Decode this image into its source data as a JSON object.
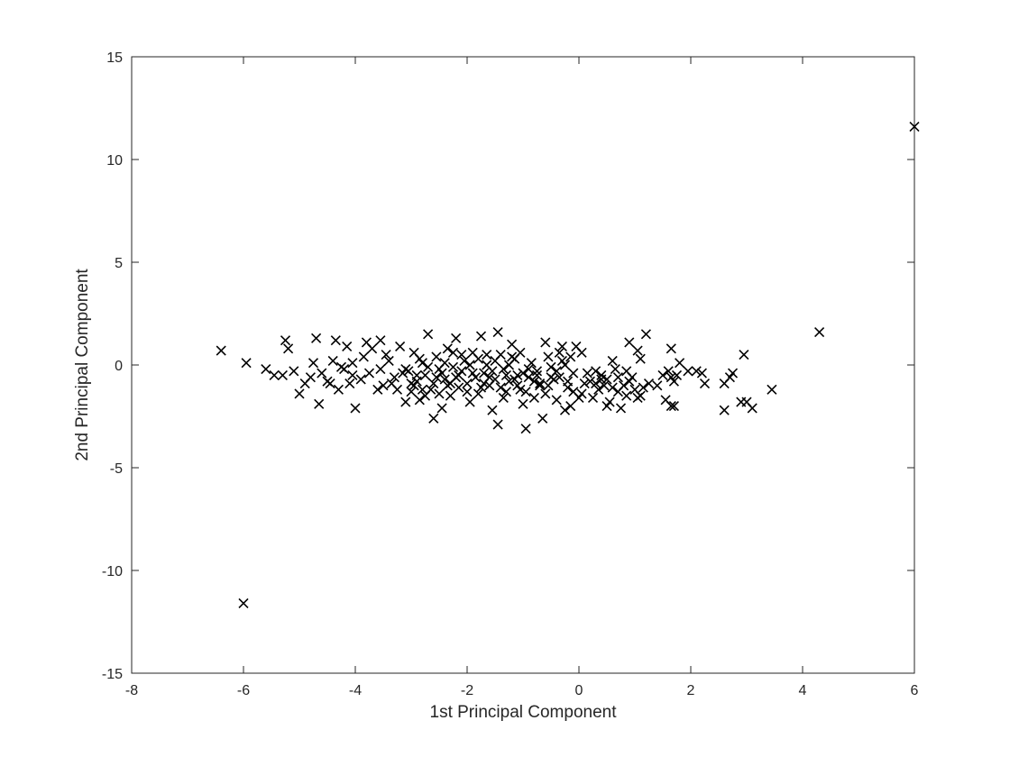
{
  "chart_data": {
    "type": "scatter",
    "title": "",
    "xlabel": "1st Principal Component",
    "ylabel": "2nd Principal Component",
    "xlim": [
      -8,
      6
    ],
    "ylim": [
      -15,
      15
    ],
    "xticks": [
      "-8",
      "-6",
      "-4",
      "-2",
      "0",
      "2",
      "4",
      "6"
    ],
    "yticks": [
      "-15",
      "-10",
      "-5",
      "0",
      "5",
      "10",
      "15"
    ],
    "grid": false,
    "legend": "none",
    "marker": "x",
    "marker_color": "#000000",
    "points": [
      [
        -6.4,
        0.7
      ],
      [
        -5.95,
        0.1
      ],
      [
        -6.0,
        -11.6
      ],
      [
        6.0,
        11.6
      ],
      [
        4.3,
        1.6
      ],
      [
        3.45,
        -1.2
      ],
      [
        3.1,
        -2.1
      ],
      [
        3.0,
        -1.8
      ],
      [
        2.9,
        -1.8
      ],
      [
        2.95,
        0.5
      ],
      [
        2.6,
        -2.2
      ],
      [
        2.6,
        -0.9
      ],
      [
        2.7,
        -0.6
      ],
      [
        2.75,
        -0.4
      ],
      [
        2.2,
        -0.4
      ],
      [
        2.25,
        -0.9
      ],
      [
        2.1,
        -0.3
      ],
      [
        1.95,
        -0.3
      ],
      [
        1.8,
        0.1
      ],
      [
        1.75,
        -0.5
      ],
      [
        1.7,
        -2.0
      ],
      [
        1.65,
        -2.0
      ],
      [
        1.7,
        -0.8
      ],
      [
        1.65,
        -0.6
      ],
      [
        1.6,
        -0.3
      ],
      [
        1.65,
        0.8
      ],
      [
        1.55,
        -1.7
      ],
      [
        1.5,
        -0.5
      ],
      [
        1.2,
        1.5
      ],
      [
        1.1,
        -1.5
      ],
      [
        1.15,
        -1.1
      ],
      [
        1.05,
        -1.6
      ],
      [
        1.0,
        -1.2
      ],
      [
        0.95,
        -0.6
      ],
      [
        0.9,
        1.1
      ],
      [
        1.05,
        0.7
      ],
      [
        1.1,
        0.3
      ],
      [
        0.85,
        -0.3
      ],
      [
        0.8,
        -1.0
      ],
      [
        0.75,
        -2.1
      ],
      [
        0.7,
        -0.6
      ],
      [
        0.65,
        -0.2
      ],
      [
        0.6,
        0.2
      ],
      [
        0.55,
        -1.8
      ],
      [
        0.5,
        -2.0
      ],
      [
        0.45,
        -1.0
      ],
      [
        0.4,
        -0.5
      ],
      [
        0.35,
        -1.2
      ],
      [
        0.3,
        -0.3
      ],
      [
        0.25,
        -1.6
      ],
      [
        0.2,
        -0.8
      ],
      [
        0.1,
        -0.9
      ],
      [
        0.05,
        -1.4
      ],
      [
        0.0,
        -1.6
      ],
      [
        -0.05,
        0.9
      ],
      [
        0.05,
        0.6
      ],
      [
        -0.1,
        -0.4
      ],
      [
        -0.15,
        -2.0
      ],
      [
        -0.25,
        -2.2
      ],
      [
        -0.2,
        -1.1
      ],
      [
        -0.3,
        0.2
      ],
      [
        -0.35,
        -0.6
      ],
      [
        -0.4,
        -1.7
      ],
      [
        -0.45,
        -0.7
      ],
      [
        -0.5,
        -0.1
      ],
      [
        -0.55,
        0.4
      ],
      [
        -0.6,
        1.1
      ],
      [
        -0.65,
        -2.6
      ],
      [
        -0.7,
        -0.9
      ],
      [
        -0.75,
        -0.3
      ],
      [
        -0.8,
        -1.6
      ],
      [
        -0.85,
        0.1
      ],
      [
        -0.9,
        -0.6
      ],
      [
        -0.95,
        -3.1
      ],
      [
        -1.0,
        -1.9
      ],
      [
        -1.05,
        -1.2
      ],
      [
        -1.1,
        -0.5
      ],
      [
        -1.15,
        0.3
      ],
      [
        -1.2,
        1.0
      ],
      [
        -1.25,
        -0.8
      ],
      [
        -1.3,
        -1.3
      ],
      [
        -1.35,
        -0.2
      ],
      [
        -1.4,
        0.5
      ],
      [
        -1.45,
        -2.9
      ],
      [
        -1.45,
        1.6
      ],
      [
        -1.5,
        -0.7
      ],
      [
        -1.55,
        -2.2
      ],
      [
        -1.6,
        -1.0
      ],
      [
        -1.65,
        0.0
      ],
      [
        -1.7,
        -0.4
      ],
      [
        -1.75,
        1.4
      ],
      [
        -1.8,
        -1.4
      ],
      [
        -1.85,
        -0.6
      ],
      [
        -1.9,
        0.6
      ],
      [
        -1.95,
        -1.8
      ],
      [
        -2.0,
        -0.9
      ],
      [
        -2.05,
        0.2
      ],
      [
        -2.1,
        -0.3
      ],
      [
        -2.15,
        -1.1
      ],
      [
        -2.2,
        1.3
      ],
      [
        -2.25,
        -0.1
      ],
      [
        -2.3,
        -1.5
      ],
      [
        -2.35,
        0.8
      ],
      [
        -2.4,
        -0.7
      ],
      [
        -2.45,
        -2.1
      ],
      [
        -2.5,
        -0.2
      ],
      [
        -2.55,
        0.4
      ],
      [
        -2.6,
        -2.6
      ],
      [
        -2.65,
        -1.2
      ],
      [
        -2.7,
        1.5
      ],
      [
        -2.75,
        -0.5
      ],
      [
        -2.8,
        0.1
      ],
      [
        -2.85,
        -1.7
      ],
      [
        -2.9,
        -0.8
      ],
      [
        -2.95,
        0.6
      ],
      [
        -3.0,
        -1.3
      ],
      [
        -3.05,
        -0.3
      ],
      [
        -3.1,
        -1.8
      ],
      [
        -3.2,
        0.9
      ],
      [
        -3.3,
        -0.6
      ],
      [
        -3.4,
        0.2
      ],
      [
        -3.5,
        -1.0
      ],
      [
        -3.55,
        1.2
      ],
      [
        -3.6,
        -1.2
      ],
      [
        -3.7,
        0.8
      ],
      [
        -3.75,
        -0.4
      ],
      [
        -3.8,
        1.1
      ],
      [
        -3.9,
        -0.7
      ],
      [
        -4.0,
        -2.1
      ],
      [
        -4.05,
        0.1
      ],
      [
        -4.1,
        -0.9
      ],
      [
        -4.15,
        0.9
      ],
      [
        -4.2,
        -0.2
      ],
      [
        -4.3,
        -1.2
      ],
      [
        -4.35,
        1.2
      ],
      [
        -4.4,
        0.2
      ],
      [
        -4.5,
        -0.8
      ],
      [
        -4.6,
        -0.4
      ],
      [
        -4.7,
        1.3
      ],
      [
        -4.65,
        -1.9
      ],
      [
        -4.75,
        0.1
      ],
      [
        -4.8,
        -0.6
      ],
      [
        -4.9,
        -0.9
      ],
      [
        -5.0,
        -1.4
      ],
      [
        -5.1,
        -0.3
      ],
      [
        -5.2,
        0.8
      ],
      [
        -5.25,
        1.2
      ],
      [
        -5.3,
        -0.5
      ],
      [
        -5.45,
        -0.5
      ],
      [
        -5.6,
        -0.2
      ],
      [
        -0.3,
        0.9
      ],
      [
        -0.5,
        -0.6
      ],
      [
        -0.7,
        -1.0
      ],
      [
        -0.9,
        -0.2
      ],
      [
        -1.1,
        -1.0
      ],
      [
        -1.3,
        -0.5
      ],
      [
        -1.5,
        0.2
      ],
      [
        -1.7,
        -0.9
      ],
      [
        -1.9,
        -0.4
      ],
      [
        -2.1,
        0.5
      ],
      [
        -2.3,
        -0.9
      ],
      [
        -2.5,
        -1.4
      ],
      [
        -2.7,
        -0.1
      ],
      [
        -2.9,
        -0.5
      ],
      [
        -3.1,
        -0.2
      ],
      [
        -0.2,
        -0.8
      ],
      [
        -0.4,
        -0.3
      ],
      [
        -0.6,
        -1.4
      ],
      [
        -0.8,
        -0.8
      ],
      [
        -1.0,
        -0.4
      ],
      [
        -1.2,
        0.4
      ],
      [
        -1.4,
        -1.1
      ],
      [
        -1.6,
        -0.6
      ],
      [
        -1.8,
        0.3
      ],
      [
        -2.0,
        -1.3
      ],
      [
        -2.2,
        -0.6
      ],
      [
        -2.4,
        0.1
      ],
      [
        -2.6,
        -0.9
      ],
      [
        -2.8,
        -1.2
      ],
      [
        -3.0,
        -0.9
      ],
      [
        0.3,
        -0.9
      ],
      [
        0.5,
        -0.7
      ],
      [
        0.7,
        -1.3
      ],
      [
        0.9,
        -0.8
      ],
      [
        -0.1,
        -1.3
      ],
      [
        -0.25,
        0.0
      ],
      [
        -0.55,
        -1.0
      ],
      [
        -0.75,
        -0.5
      ],
      [
        -0.95,
        -1.3
      ],
      [
        -1.15,
        -0.7
      ],
      [
        -1.35,
        -1.6
      ],
      [
        -1.55,
        -0.3
      ],
      [
        -1.75,
        -1.1
      ],
      [
        -1.95,
        0.0
      ],
      [
        -2.15,
        -0.5
      ],
      [
        -2.35,
        -1.0
      ],
      [
        -2.55,
        -0.6
      ],
      [
        -2.75,
        -1.5
      ],
      [
        -2.95,
        -1.0
      ],
      [
        -3.15,
        -0.4
      ],
      [
        -3.35,
        -0.9
      ],
      [
        -3.55,
        -0.2
      ],
      [
        -3.85,
        0.4
      ],
      [
        -4.05,
        -0.5
      ],
      [
        -4.25,
        -0.1
      ],
      [
        -4.45,
        -0.9
      ],
      [
        0.15,
        -0.4
      ],
      [
        0.4,
        -0.7
      ],
      [
        0.6,
        -1.1
      ],
      [
        0.85,
        -1.5
      ],
      [
        1.25,
        -0.9
      ],
      [
        1.4,
        -1.0
      ],
      [
        -0.15,
        0.4
      ],
      [
        -0.35,
        0.6
      ],
      [
        -1.05,
        0.6
      ],
      [
        -1.25,
        0.0
      ],
      [
        -1.65,
        0.5
      ],
      [
        -2.25,
        0.6
      ],
      [
        -2.45,
        -0.4
      ],
      [
        -2.85,
        0.3
      ],
      [
        -3.25,
        -1.2
      ],
      [
        -3.45,
        0.5
      ]
    ]
  }
}
